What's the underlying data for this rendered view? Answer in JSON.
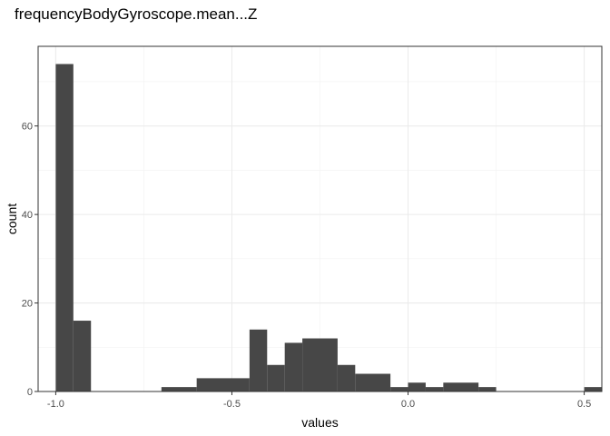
{
  "chart_data": {
    "type": "bar",
    "title": "frequencyBodyGyroscope.mean...Z",
    "xlabel": "values",
    "ylabel": "count",
    "xlim": [
      -1.05,
      0.55
    ],
    "ylim": [
      0,
      78
    ],
    "x_ticks": [
      -1.0,
      -0.5,
      0.0,
      0.5
    ],
    "x_tick_labels": [
      "-1.0",
      "-0.5",
      "0.0",
      "0.5"
    ],
    "y_ticks": [
      0,
      20,
      40,
      60
    ],
    "y_tick_labels": [
      "0",
      "20",
      "40",
      "60"
    ],
    "grid": true,
    "bar_color": "#474747",
    "bins": [
      {
        "x0": -1.0,
        "x1": -0.95,
        "count": 74
      },
      {
        "x0": -0.95,
        "x1": -0.9,
        "count": 16
      },
      {
        "x0": -0.7,
        "x1": -0.6,
        "count": 1
      },
      {
        "x0": -0.6,
        "x1": -0.45,
        "count": 3
      },
      {
        "x0": -0.45,
        "x1": -0.4,
        "count": 14
      },
      {
        "x0": -0.4,
        "x1": -0.35,
        "count": 6
      },
      {
        "x0": -0.35,
        "x1": -0.3,
        "count": 11
      },
      {
        "x0": -0.3,
        "x1": -0.2,
        "count": 12
      },
      {
        "x0": -0.2,
        "x1": -0.15,
        "count": 6
      },
      {
        "x0": -0.15,
        "x1": -0.05,
        "count": 4
      },
      {
        "x0": -0.05,
        "x1": 0.0,
        "count": 1
      },
      {
        "x0": 0.0,
        "x1": 0.05,
        "count": 2
      },
      {
        "x0": 0.05,
        "x1": 0.1,
        "count": 1
      },
      {
        "x0": 0.1,
        "x1": 0.2,
        "count": 2
      },
      {
        "x0": 0.2,
        "x1": 0.25,
        "count": 1
      },
      {
        "x0": 0.5,
        "x1": 0.55,
        "count": 1
      }
    ]
  }
}
